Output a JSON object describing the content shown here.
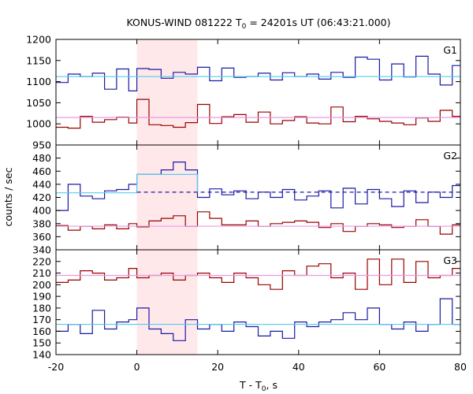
{
  "chart_data": {
    "type": "line",
    "title_main": "KONUS-WIND 081222 T",
    "title_sub": "0",
    "title_rest": " = 24201s UT (06:43:21.000)",
    "xlabel_main": "T - T",
    "xlabel_sub": "0",
    "xlabel_rest": ", s",
    "ylabel": "counts / sec",
    "xlim": [
      -20,
      80
    ],
    "x_ticks": [
      -20,
      0,
      20,
      40,
      60,
      80
    ],
    "x_tick_labels": [
      "-20",
      "0",
      "20",
      "40",
      "60",
      "80"
    ],
    "highlight_interval": [
      0,
      15
    ],
    "colors": {
      "blue_series": "#1a1aa6",
      "red_series": "#990000",
      "fit_cyan": "#55ccee",
      "fit_pink": "#e99ae6",
      "highlight": "#ffe8ea",
      "dashed": "#1a1aa6"
    },
    "panels": [
      {
        "label": "G1",
        "ylim": [
          950,
          1200
        ],
        "y_ticks": [
          950,
          1000,
          1050,
          1100,
          1150,
          1200
        ],
        "y_tick_labels": [
          "950",
          "1000",
          "1050",
          "1100",
          "1150",
          "1200"
        ],
        "fit_blue": {
          "x_from": -20,
          "x_to": 80,
          "y": 1112
        },
        "fit_red": {
          "x_from": -20,
          "x_to": 80,
          "y": 1015
        },
        "blue_steps": {
          "edges": [
            -20,
            -17,
            -14,
            -11,
            -8,
            -5,
            -2,
            0,
            3,
            6,
            9,
            12,
            15,
            18,
            21,
            24,
            27,
            30,
            33,
            36,
            39,
            42,
            45,
            48,
            51,
            54,
            57,
            60,
            63,
            66,
            69,
            72,
            75,
            78,
            80
          ],
          "values": [
            1098,
            1118,
            1112,
            1120,
            1082,
            1130,
            1078,
            1131,
            1129,
            1108,
            1122,
            1118,
            1134,
            1102,
            1132,
            1110,
            1112,
            1120,
            1104,
            1121,
            1112,
            1118,
            1106,
            1122,
            1110,
            1158,
            1153,
            1104,
            1142,
            1111,
            1160,
            1118,
            1092,
            1138
          ]
        },
        "red_steps": {
          "edges": [
            -20,
            -17,
            -14,
            -11,
            -8,
            -5,
            -2,
            0,
            3,
            6,
            9,
            12,
            15,
            18,
            21,
            24,
            27,
            30,
            33,
            36,
            39,
            42,
            45,
            48,
            51,
            54,
            57,
            60,
            63,
            66,
            69,
            72,
            75,
            78,
            80
          ],
          "values": [
            992,
            990,
            1018,
            1004,
            1010,
            1016,
            1002,
            1058,
            998,
            996,
            992,
            1003,
            1046,
            1001,
            1017,
            1022,
            1004,
            1028,
            1000,
            1008,
            1017,
            1002,
            1000,
            1040,
            1005,
            1018,
            1012,
            1006,
            1002,
            998,
            1014,
            1006,
            1032,
            1018
          ]
        }
      },
      {
        "label": "G2",
        "ylim": [
          340,
          500
        ],
        "y_ticks": [
          340,
          360,
          380,
          400,
          420,
          440,
          460,
          480
        ],
        "y_tick_labels": [
          "340",
          "360",
          "380",
          "400",
          "420",
          "440",
          "460",
          "480"
        ],
        "fit_blue": {
          "x_from": -20,
          "x_to": 0,
          "y": 427
        },
        "fit_blue_pulse": {
          "x_from": 0,
          "x_to": 15,
          "y": 455
        },
        "dashed_blue": {
          "x_from": 0,
          "x_to": 80,
          "y": 428
        },
        "fit_red": {
          "x_from": -20,
          "x_to": 80,
          "y": 376
        },
        "blue_steps": {
          "edges": [
            -20,
            -17,
            -14,
            -11,
            -8,
            -5,
            -2,
            0,
            3,
            6,
            9,
            12,
            15,
            18,
            21,
            24,
            27,
            30,
            33,
            36,
            39,
            42,
            45,
            48,
            51,
            54,
            57,
            60,
            63,
            66,
            69,
            72,
            75,
            78,
            80
          ],
          "values": [
            400,
            440,
            422,
            418,
            430,
            432,
            440,
            455,
            455,
            462,
            474,
            462,
            420,
            433,
            424,
            430,
            418,
            428,
            420,
            432,
            416,
            422,
            430,
            404,
            434,
            410,
            432,
            418,
            406,
            430,
            412,
            428,
            420,
            438
          ]
        },
        "red_steps": {
          "edges": [
            -20,
            -17,
            -14,
            -11,
            -8,
            -5,
            -2,
            0,
            3,
            6,
            9,
            12,
            15,
            18,
            21,
            24,
            27,
            30,
            33,
            36,
            39,
            42,
            45,
            48,
            51,
            54,
            57,
            60,
            63,
            66,
            69,
            72,
            75,
            78,
            80
          ],
          "values": [
            377,
            370,
            376,
            372,
            378,
            372,
            380,
            375,
            384,
            388,
            392,
            376,
            398,
            388,
            378,
            378,
            384,
            376,
            380,
            382,
            384,
            382,
            374,
            380,
            368,
            376,
            380,
            378,
            374,
            376,
            386,
            376,
            364,
            378
          ]
        }
      },
      {
        "label": "G3",
        "ylim": [
          140,
          230
        ],
        "y_ticks": [
          140,
          150,
          160,
          170,
          180,
          190,
          200,
          210,
          220
        ],
        "y_tick_labels": [
          "140",
          "150",
          "160",
          "170",
          "180",
          "190",
          "200",
          "210",
          "220"
        ],
        "fit_blue": {
          "x_from": -20,
          "x_to": 80,
          "y": 166
        },
        "fit_red": {
          "x_from": -20,
          "x_to": 80,
          "y": 208
        },
        "blue_steps": {
          "edges": [
            -20,
            -17,
            -14,
            -11,
            -8,
            -5,
            -2,
            0,
            3,
            6,
            9,
            12,
            15,
            18,
            21,
            24,
            27,
            30,
            33,
            36,
            39,
            42,
            45,
            48,
            51,
            54,
            57,
            60,
            63,
            66,
            69,
            72,
            75,
            78,
            80
          ],
          "values": [
            160,
            166,
            158,
            178,
            162,
            168,
            170,
            180,
            162,
            158,
            152,
            170,
            162,
            166,
            160,
            168,
            164,
            156,
            160,
            154,
            168,
            164,
            168,
            170,
            176,
            170,
            180,
            166,
            162,
            168,
            160,
            166,
            188,
            166
          ]
        },
        "red_steps": {
          "edges": [
            -20,
            -17,
            -14,
            -11,
            -8,
            -5,
            -2,
            0,
            3,
            6,
            9,
            12,
            15,
            18,
            21,
            24,
            27,
            30,
            33,
            36,
            39,
            42,
            45,
            48,
            51,
            54,
            57,
            60,
            63,
            66,
            69,
            72,
            75,
            78,
            80
          ],
          "values": [
            202,
            204,
            212,
            210,
            204,
            206,
            214,
            206,
            208,
            210,
            204,
            208,
            210,
            206,
            202,
            210,
            206,
            200,
            196,
            212,
            208,
            216,
            218,
            206,
            210,
            196,
            222,
            200,
            222,
            202,
            220,
            206,
            208,
            214
          ]
        }
      }
    ]
  }
}
